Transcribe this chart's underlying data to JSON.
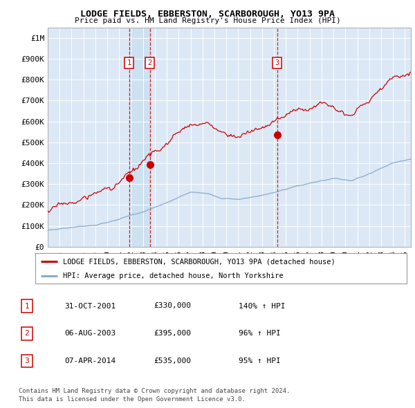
{
  "title": "LODGE FIELDS, EBBERSTON, SCARBOROUGH, YO13 9PA",
  "subtitle": "Price paid vs. HM Land Registry's House Price Index (HPI)",
  "red_line_label": "LODGE FIELDS, EBBERSTON, SCARBOROUGH, YO13 9PA (detached house)",
  "blue_line_label": "HPI: Average price, detached house, North Yorkshire",
  "transactions": [
    {
      "num": 1,
      "date": "31-OCT-2001",
      "price": "£330,000",
      "hpi_pct": "140% ↑ HPI",
      "year": 2001.83,
      "price_val": 330000
    },
    {
      "num": 2,
      "date": "06-AUG-2003",
      "price": "£395,000",
      "hpi_pct": "96% ↑ HPI",
      "year": 2003.58,
      "price_val": 395000
    },
    {
      "num": 3,
      "date": "07-APR-2014",
      "price": "£535,000",
      "hpi_pct": "95% ↑ HPI",
      "year": 2014.27,
      "price_val": 535000
    }
  ],
  "footnote1": "Contains HM Land Registry data © Crown copyright and database right 2024.",
  "footnote2": "This data is licensed under the Open Government Licence v3.0.",
  "xlim_start": 1995,
  "xlim_end": 2025.5,
  "ylim_min": 0,
  "ylim_max": 1050000,
  "red_color": "#cc0000",
  "blue_color": "#88aacc",
  "plot_bg_color": "#dce8f5",
  "shade_color": "#d0e4f8",
  "grid_color": "#ffffff"
}
